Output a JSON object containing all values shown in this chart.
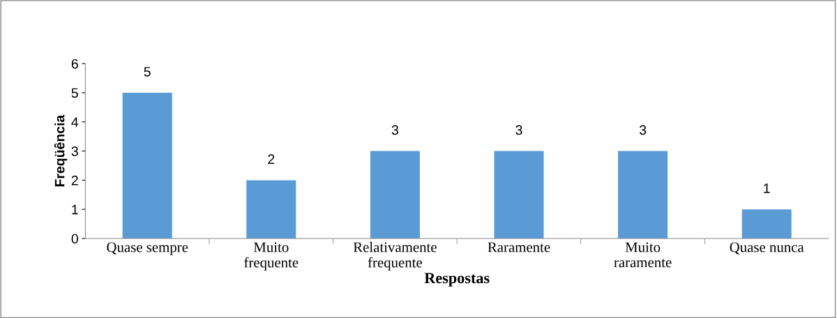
{
  "chart_data": {
    "type": "bar",
    "xlabel": "Respostas",
    "ylabel": "Freqüência",
    "categories": [
      "Quase sempre",
      "Muito\nfrequente",
      "Relativamente\nfrequente",
      "Raramente",
      "Muito\nraramente",
      "Quase nunca"
    ],
    "values": [
      5,
      2,
      3,
      3,
      3,
      1
    ],
    "color": "#5b9bd5",
    "ylim": [
      0,
      6
    ],
    "yticks": [
      0,
      1,
      2,
      3,
      4,
      5,
      6
    ],
    "grid": false,
    "data_labels": true
  }
}
